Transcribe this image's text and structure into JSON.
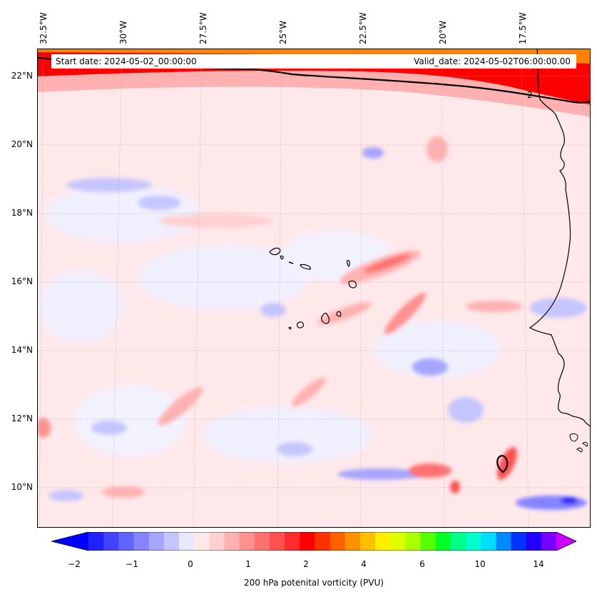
{
  "map": {
    "start_date": "Start date: 2024-05-02_00:00:00",
    "valid_date": "Valid_date: 2024-05-02T06:00:00.00",
    "contour_label": "2",
    "longitude_labels": [
      "32.5°W",
      "30°W",
      "27.5°W",
      "25°W",
      "22.5°W",
      "20°W",
      "17.5°W"
    ],
    "latitude_labels": [
      "22°N",
      "20°N",
      "18°N",
      "16°N",
      "14°N",
      "12°N",
      "10°N"
    ],
    "gridlines": true
  },
  "colorbar": {
    "title": "200 hPa potenital vorticity (PVU)",
    "tick_labels": [
      "−2",
      "−1",
      "0",
      "1",
      "2",
      "4",
      "6",
      "10",
      "14"
    ],
    "colors": [
      "#0000ff",
      "#2121ff",
      "#4242ff",
      "#6363ff",
      "#8484ff",
      "#a5a5ff",
      "#c6c6ff",
      "#e8e8ff",
      "#ffe8e8",
      "#ffd0d0",
      "#ffb0b0",
      "#ff9090",
      "#ff7070",
      "#ff5050",
      "#ff2a2a",
      "#ff0000",
      "#ff3000",
      "#ff6000",
      "#ff9000",
      "#ffc000",
      "#ffee00",
      "#ddff00",
      "#aaff00",
      "#55ff00",
      "#00ff22",
      "#00ff88",
      "#00ffcc",
      "#00ddff",
      "#0088ff",
      "#0033ff",
      "#2200ff",
      "#7700ff",
      "#cc00ff"
    ]
  }
}
